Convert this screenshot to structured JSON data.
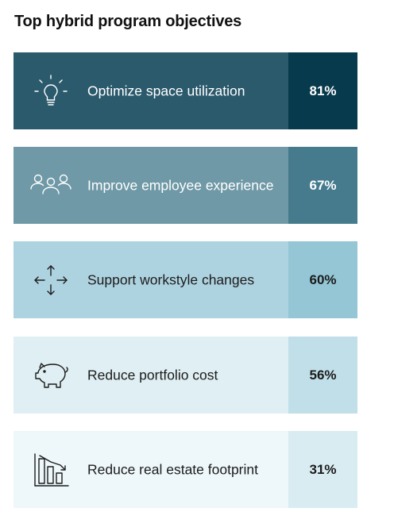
{
  "chart_data": {
    "type": "table",
    "title": "Top hybrid program objectives",
    "categories": [
      "Optimize space utilization",
      "Improve employee experience",
      "Support workstyle changes",
      "Reduce portfolio cost",
      "Reduce real estate footprint"
    ],
    "values": [
      81,
      67,
      60,
      56,
      31
    ],
    "value_labels": [
      "81%",
      "67%",
      "60%",
      "56%",
      "31%"
    ],
    "icons": [
      "lightbulb-icon",
      "people-group-icon",
      "arrows-directions-icon",
      "piggy-bank-icon",
      "declining-bars-icon"
    ],
    "colors": {
      "label_bg": [
        "#2b5a6c",
        "#6f99a6",
        "#aed3e0",
        "#dfeff3",
        "#eef7f9"
      ],
      "value_bg": [
        "#073a4c",
        "#457b8d",
        "#94c6d6",
        "#c0dfe8",
        "#d9ecf1"
      ],
      "label_text": [
        "#ffffff",
        "#ffffff",
        "#1c1c1c",
        "#1c1c1c",
        "#1c1c1c"
      ],
      "value_text": [
        "#ffffff",
        "#ffffff",
        "#1c1c1c",
        "#1c1c1c",
        "#1c1c1c"
      ]
    }
  }
}
